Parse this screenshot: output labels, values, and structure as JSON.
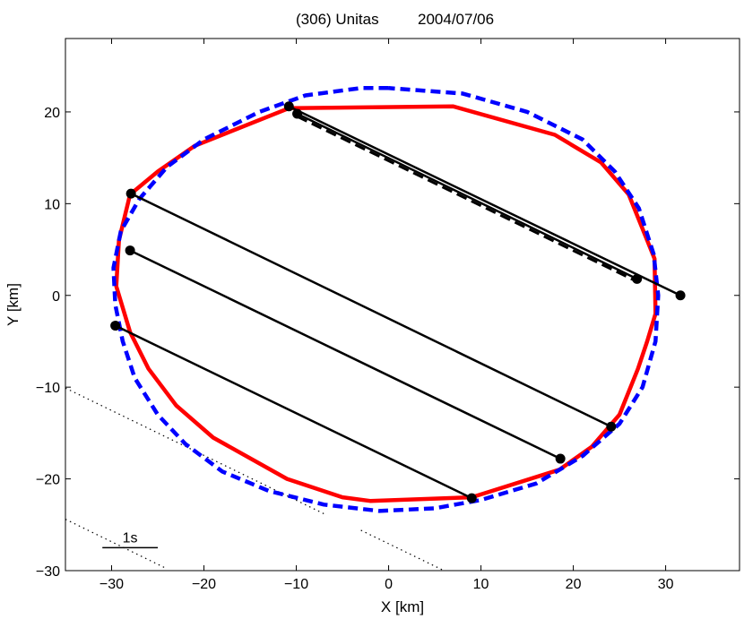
{
  "chart_data": {
    "type": "scatter",
    "title": "(306) Unitas",
    "date": "2004/07/06",
    "xlabel": "X [km]",
    "ylabel": "Y [km]",
    "xlim": [
      -35,
      38
    ],
    "ylim": [
      -30,
      28
    ],
    "xticks": [
      -30,
      -20,
      -10,
      0,
      10,
      20,
      30
    ],
    "yticks": [
      -30,
      -20,
      -10,
      0,
      10,
      20
    ],
    "xtick_labels": [
      "−30",
      "−20",
      "−10",
      "0",
      "10",
      "20",
      "30"
    ],
    "ytick_labels": [
      "−30",
      "−20",
      "−10",
      "0",
      "10",
      "20"
    ],
    "grid": false,
    "scale_bar_label": "1s",
    "scale_bar": {
      "x": [
        -31,
        -25
      ],
      "y": -27.5
    },
    "colors": {
      "model_profile": "#ff0000",
      "fitted_ellipse": "#0000ff",
      "chords": "#000000"
    },
    "series": [
      {
        "style": "solid-red",
        "points": [
          [
            -10.8,
            20.4
          ],
          [
            7.0,
            20.6
          ],
          [
            18,
            17.5
          ],
          [
            23,
            14.5
          ],
          [
            26,
            11
          ],
          [
            28,
            6
          ],
          [
            28.8,
            4
          ],
          [
            28.9,
            -2
          ],
          [
            28,
            -5
          ],
          [
            27,
            -8
          ],
          [
            25,
            -13
          ],
          [
            22,
            -16.5
          ],
          [
            18.5,
            -19
          ],
          [
            9,
            -22
          ],
          [
            -2,
            -22.4
          ],
          [
            -5,
            -22
          ],
          [
            -11,
            -20
          ],
          [
            -19,
            -15.5
          ],
          [
            -23,
            -12
          ],
          [
            -26,
            -8
          ],
          [
            -28,
            -4
          ],
          [
            -29.5,
            1
          ],
          [
            -29.2,
            6
          ],
          [
            -28,
            11
          ],
          [
            -25,
            13.5
          ],
          [
            -21,
            16.3
          ],
          [
            -10.8,
            20.4
          ]
        ]
      },
      {
        "style": "dashed-blue",
        "points": [
          [
            0,
            22.6
          ],
          [
            -3,
            22.6
          ],
          [
            -9,
            21.8
          ],
          [
            -14,
            20
          ],
          [
            -20,
            17
          ],
          [
            -24,
            14
          ],
          [
            -27,
            10.5
          ],
          [
            -29,
            7
          ],
          [
            -29.8,
            3
          ],
          [
            -29.6,
            -1
          ],
          [
            -28.8,
            -5
          ],
          [
            -27.5,
            -9
          ],
          [
            -25,
            -13
          ],
          [
            -22,
            -16.2
          ],
          [
            -18,
            -19.2
          ],
          [
            -13,
            -21.3
          ],
          [
            -7,
            -22.8
          ],
          [
            -1,
            -23.5
          ],
          [
            5,
            -23.2
          ],
          [
            10,
            -22.3
          ],
          [
            16,
            -20.5
          ],
          [
            21,
            -17.5
          ],
          [
            25,
            -14
          ],
          [
            27.5,
            -10
          ],
          [
            28.9,
            -5
          ],
          [
            29.2,
            0
          ],
          [
            28.7,
            4.5
          ],
          [
            27.1,
            9.5
          ],
          [
            24.5,
            13.5
          ],
          [
            21,
            17
          ],
          [
            15,
            20
          ],
          [
            8,
            22
          ],
          [
            0,
            22.6
          ]
        ]
      }
    ],
    "chords": [
      {
        "style": "solid",
        "start": [
          -10.8,
          20.6
        ],
        "end": [
          31.6,
          0.0
        ]
      },
      {
        "style": "dashed",
        "start": [
          -9.9,
          19.8
        ],
        "end": [
          26.9,
          1.8
        ]
      },
      {
        "style": "solid",
        "start": [
          -9.9,
          19.8
        ],
        "end": [
          26.9,
          1.8
        ]
      },
      {
        "style": "solid",
        "start": [
          -27.9,
          11.1
        ],
        "end": [
          24.1,
          -14.3
        ]
      },
      {
        "style": "solid",
        "start": [
          -28.0,
          4.9
        ],
        "end": [
          18.6,
          -17.8
        ]
      },
      {
        "style": "solid",
        "start": [
          -29.6,
          -3.3
        ],
        "end": [
          9.0,
          -22.1
        ]
      }
    ],
    "dotted_lines": [
      {
        "start": [
          -35,
          -10.1
        ],
        "end": [
          -6.8,
          -23.9
        ]
      },
      {
        "start": [
          -35,
          -24.4
        ],
        "end": [
          -24,
          -29.8
        ]
      },
      {
        "start": [
          -3.0,
          -25.6
        ],
        "end": [
          6.0,
          -30.0
        ]
      }
    ]
  }
}
